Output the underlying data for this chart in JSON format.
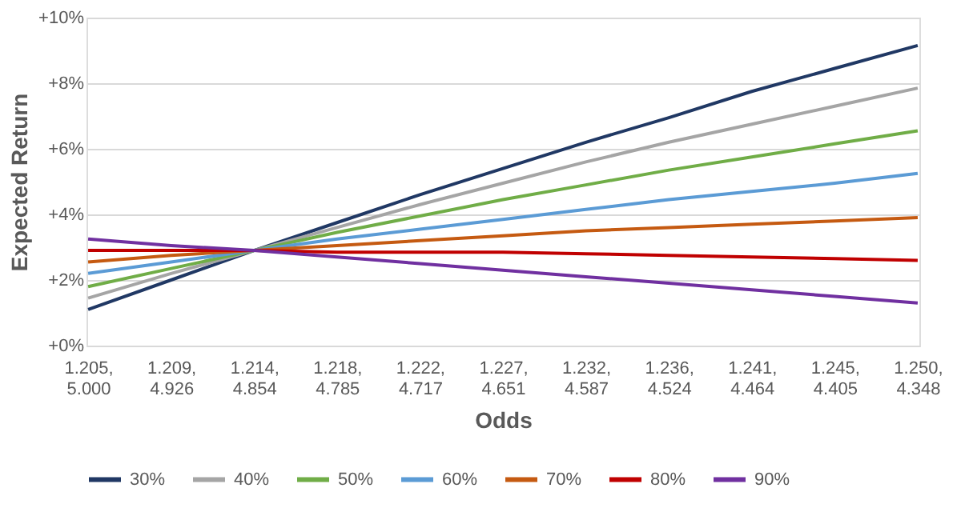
{
  "chart_data": {
    "type": "line",
    "xlabel": "Odds",
    "ylabel": "Expected Return",
    "categories": [
      "1.205,\n5.000",
      "1.209,\n4.926",
      "1.214,\n4.854",
      "1.218,\n4.785",
      "1.222,\n4.717",
      "1.227,\n4.651",
      "1.232,\n4.587",
      "1.236,\n4.524",
      "1.241,\n4.464",
      "1.245,\n4.405",
      "1.250,\n4.348"
    ],
    "series": [
      {
        "name": "30%",
        "color": "#203864",
        "values": [
          1.1,
          2.0,
          2.9,
          3.75,
          4.6,
          5.4,
          6.2,
          6.95,
          7.75,
          8.45,
          9.15
        ]
      },
      {
        "name": "40%",
        "color": "#a5a5a5",
        "values": [
          1.45,
          2.2,
          2.9,
          3.6,
          4.3,
          4.95,
          5.6,
          6.2,
          6.75,
          7.3,
          7.85
        ]
      },
      {
        "name": "50%",
        "color": "#70ad47",
        "values": [
          1.8,
          2.35,
          2.9,
          3.45,
          3.95,
          4.45,
          4.9,
          5.35,
          5.75,
          6.15,
          6.55
        ]
      },
      {
        "name": "60%",
        "color": "#5b9bd5",
        "values": [
          2.2,
          2.55,
          2.9,
          3.25,
          3.55,
          3.85,
          4.15,
          4.45,
          4.7,
          4.95,
          5.25
        ]
      },
      {
        "name": "70%",
        "color": "#c55a11",
        "values": [
          2.55,
          2.75,
          2.9,
          3.05,
          3.2,
          3.35,
          3.5,
          3.6,
          3.7,
          3.8,
          3.9
        ]
      },
      {
        "name": "80%",
        "color": "#c00000",
        "values": [
          2.9,
          2.9,
          2.9,
          2.85,
          2.85,
          2.85,
          2.8,
          2.75,
          2.7,
          2.65,
          2.6
        ]
      },
      {
        "name": "90%",
        "color": "#7030a0",
        "values": [
          3.25,
          3.05,
          2.9,
          2.7,
          2.5,
          2.3,
          2.1,
          1.9,
          1.7,
          1.5,
          1.3
        ]
      }
    ],
    "ylim": [
      0,
      10
    ],
    "yticks": [
      {
        "value": 0,
        "label": "+0%"
      },
      {
        "value": 2,
        "label": "+2%"
      },
      {
        "value": 4,
        "label": "+4%"
      },
      {
        "value": 6,
        "label": "+6%"
      },
      {
        "value": 8,
        "label": "+8%"
      },
      {
        "value": 10,
        "label": "+10%"
      }
    ],
    "grid": "y",
    "legend": "bottom",
    "marker": "none",
    "line_style": "solid"
  }
}
